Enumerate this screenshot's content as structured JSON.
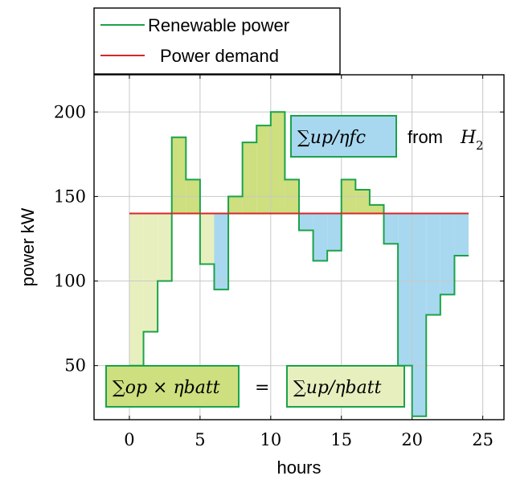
{
  "chart_data": {
    "type": "step",
    "xlabel": "hours",
    "ylabel": "power kW",
    "xlim": [
      -2.5,
      26.5
    ],
    "ylim": [
      18,
      222
    ],
    "xticks": [
      0,
      5,
      10,
      15,
      20,
      25
    ],
    "yticks": [
      50,
      100,
      150,
      200
    ],
    "grid": true,
    "legend_placement": "top-left, outside",
    "series": [
      {
        "name": "Renewable power",
        "color": "#1aa34a",
        "x": [
          0,
          1,
          2,
          3,
          4,
          5,
          6,
          7,
          8,
          9,
          10,
          11,
          12,
          13,
          14,
          15,
          16,
          17,
          18,
          19,
          20,
          21,
          22,
          23,
          24
        ],
        "values": [
          50,
          70,
          100,
          185,
          160,
          110,
          95,
          150,
          182,
          192,
          200,
          160,
          130,
          112,
          118,
          160,
          154,
          145,
          122,
          50,
          20,
          80,
          92,
          115,
          115
        ]
      },
      {
        "name": "Power demand",
        "color": "#d62728",
        "x": [
          0,
          24
        ],
        "values": [
          140,
          140
        ]
      }
    ],
    "fill_colors": {
      "surplus": "#cddf7e",
      "deficit": "#a8d8ef",
      "light_surplus": "#e8efbf"
    },
    "annotations": {
      "h2_box": "∑up/ηfc",
      "h2_suffix": "from",
      "h2_var": "H",
      "h2_sub": "2",
      "batt_left": "∑op × ηbatt",
      "equals": "=",
      "batt_right": "∑up/ηbatt"
    }
  }
}
